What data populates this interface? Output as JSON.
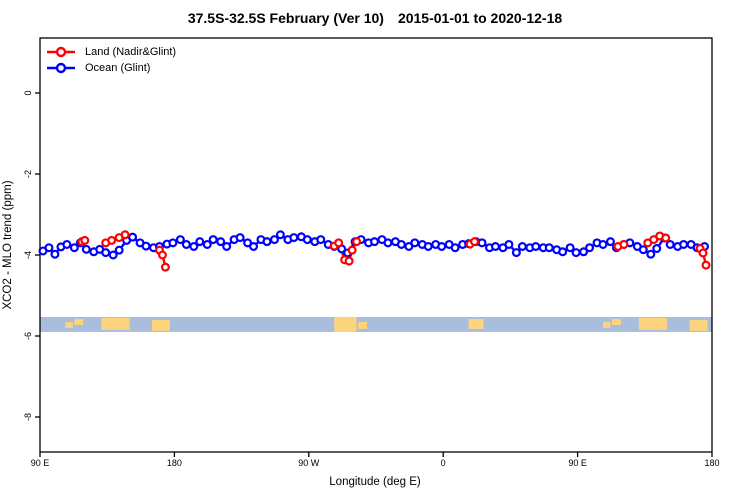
{
  "title": {
    "region": "37.5S-32.5S February (Ver 10)",
    "period": "2015-01-01 to 2020-12-18"
  },
  "legend": {
    "land_label": "Land (Nadir&Glint)",
    "ocean_label": "Ocean (Glint)"
  },
  "axes": {
    "x": {
      "label": "Longitude (deg E)",
      "ticks": [
        "90 E",
        "180",
        "90 W",
        "0",
        "90 E",
        "180"
      ],
      "tick_values": [
        90,
        180,
        270,
        360,
        450,
        540
      ],
      "range": [
        90,
        540
      ]
    },
    "y": {
      "label": "XCO2 - MLO trend (ppm)",
      "ticks": [
        "0",
        "-2",
        "-4",
        "-6",
        "-8"
      ],
      "tick_values": [
        0,
        -2,
        -4,
        -6,
        -8
      ],
      "range": [
        1.35,
        -8.85
      ]
    }
  },
  "colors": {
    "land": "#ff0000",
    "ocean": "#0000ff",
    "map_ocean": "#a9bedd",
    "map_land": "#fcd47e",
    "axis": "#000000",
    "marker_fill": "#ffffff"
  },
  "chart_data": {
    "type": "line",
    "title": "37.5S-32.5S February (Ver 10)  2015-01-01 to 2020-12-18",
    "xlabel": "Longitude (deg E)",
    "ylabel": "XCO2 - MLO trend (ppm)",
    "xlim": [
      90,
      540
    ],
    "ylim": [
      1.35,
      -8.85
    ],
    "grid": false,
    "legend_position": "top-left",
    "series": [
      {
        "name": "Ocean (Glint)",
        "color": "#0000ff",
        "points": [
          [
            92,
            -3.9
          ],
          [
            96,
            -3.82
          ],
          [
            100,
            -3.98
          ],
          [
            104,
            -3.8
          ],
          [
            108,
            -3.74
          ],
          [
            113,
            -3.82
          ],
          [
            117,
            -3.7
          ],
          [
            121,
            -3.86
          ],
          [
            126,
            -3.92
          ],
          [
            130,
            -3.86
          ],
          [
            134,
            -3.94
          ],
          [
            139,
            -4.0
          ],
          [
            143,
            -3.88
          ],
          [
            148,
            -3.64
          ],
          [
            152,
            -3.56
          ],
          [
            157,
            -3.7
          ],
          [
            161,
            -3.78
          ],
          [
            166,
            -3.82
          ],
          [
            170,
            -3.79
          ],
          [
            175,
            -3.73
          ],
          [
            179,
            -3.7
          ],
          [
            184,
            -3.62
          ],
          [
            188,
            -3.74
          ],
          [
            193,
            -3.79
          ],
          [
            197,
            -3.67
          ],
          [
            202,
            -3.74
          ],
          [
            206,
            -3.62
          ],
          [
            211,
            -3.67
          ],
          [
            215,
            -3.79
          ],
          [
            220,
            -3.62
          ],
          [
            224,
            -3.57
          ],
          [
            229,
            -3.7
          ],
          [
            233,
            -3.79
          ],
          [
            238,
            -3.62
          ],
          [
            242,
            -3.67
          ],
          [
            247,
            -3.62
          ],
          [
            251,
            -3.5
          ],
          [
            256,
            -3.62
          ],
          [
            260,
            -3.57
          ],
          [
            265,
            -3.55
          ],
          [
            269,
            -3.62
          ],
          [
            274,
            -3.67
          ],
          [
            278,
            -3.62
          ],
          [
            283,
            -3.74
          ],
          [
            287,
            -3.79
          ],
          [
            292,
            -3.85
          ],
          [
            296,
            -3.95
          ],
          [
            301,
            -3.67
          ],
          [
            305,
            -3.62
          ],
          [
            310,
            -3.7
          ],
          [
            314,
            -3.67
          ],
          [
            319,
            -3.62
          ],
          [
            323,
            -3.7
          ],
          [
            328,
            -3.67
          ],
          [
            332,
            -3.74
          ],
          [
            337,
            -3.79
          ],
          [
            341,
            -3.7
          ],
          [
            346,
            -3.74
          ],
          [
            350,
            -3.79
          ],
          [
            355,
            -3.74
          ],
          [
            359,
            -3.79
          ],
          [
            364,
            -3.74
          ],
          [
            368,
            -3.82
          ],
          [
            373,
            -3.74
          ],
          [
            377,
            -3.72
          ],
          [
            382,
            -3.67
          ],
          [
            386,
            -3.7
          ],
          [
            391,
            -3.82
          ],
          [
            395,
            -3.79
          ],
          [
            400,
            -3.82
          ],
          [
            404,
            -3.74
          ],
          [
            409,
            -3.94
          ],
          [
            413,
            -3.79
          ],
          [
            418,
            -3.82
          ],
          [
            422,
            -3.79
          ],
          [
            427,
            -3.82
          ],
          [
            431,
            -3.82
          ],
          [
            436,
            -3.87
          ],
          [
            440,
            -3.92
          ],
          [
            445,
            -3.82
          ],
          [
            449,
            -3.94
          ],
          [
            454,
            -3.92
          ],
          [
            458,
            -3.82
          ],
          [
            463,
            -3.7
          ],
          [
            467,
            -3.74
          ],
          [
            472,
            -3.67
          ],
          [
            476,
            -3.82
          ],
          [
            481,
            -3.74
          ],
          [
            485,
            -3.7
          ],
          [
            490,
            -3.79
          ],
          [
            494,
            -3.87
          ],
          [
            499,
            -3.98
          ],
          [
            503,
            -3.84
          ],
          [
            508,
            -3.58
          ],
          [
            512,
            -3.74
          ],
          [
            517,
            -3.79
          ],
          [
            521,
            -3.74
          ],
          [
            526,
            -3.74
          ],
          [
            530,
            -3.82
          ],
          [
            535,
            -3.79
          ]
        ]
      },
      {
        "name": "Land (Nadir&Glint)",
        "color": "#ff0000",
        "groups": [
          [
            [
              118,
              -3.67
            ],
            [
              120,
              -3.64
            ]
          ],
          [
            [
              134,
              -3.7
            ],
            [
              138,
              -3.64
            ],
            [
              143,
              -3.57
            ],
            [
              147,
              -3.5
            ]
          ],
          [
            [
              170,
              -3.88
            ],
            [
              172,
              -4.0
            ],
            [
              174,
              -4.3
            ]
          ],
          [
            [
              287,
              -3.78
            ],
            [
              290,
              -3.7
            ],
            [
              294,
              -4.12
            ],
            [
              297,
              -4.15
            ],
            [
              299,
              -3.88
            ],
            [
              302,
              -3.67
            ]
          ],
          [
            [
              378,
              -3.73
            ],
            [
              381,
              -3.67
            ]
          ],
          [
            [
              477,
              -3.79
            ],
            [
              481,
              -3.74
            ]
          ],
          [
            [
              497,
              -3.7
            ],
            [
              501,
              -3.62
            ],
            [
              505,
              -3.53
            ],
            [
              509,
              -3.58
            ]
          ],
          [
            [
              532,
              -3.84
            ],
            [
              534,
              -3.95
            ],
            [
              536,
              -4.25
            ]
          ]
        ]
      }
    ],
    "map_strip": {
      "description": "world map band for latitude 37.5S-32.5S",
      "ppm_top": -5.53,
      "ppm_bottom": -5.9,
      "lon_range": [
        90,
        540
      ],
      "land_patches": [
        {
          "from": 107,
          "to": 112,
          "top": 5,
          "bottom": 4
        },
        {
          "from": 113,
          "to": 119,
          "top": 2,
          "bottom": 7
        },
        {
          "from": 131,
          "to": 150,
          "top": 1,
          "bottom": 2
        },
        {
          "from": 165,
          "to": 177,
          "top": 3,
          "bottom": 1
        },
        {
          "from": 287,
          "to": 302,
          "top": 0,
          "bottom": 0
        },
        {
          "from": 303,
          "to": 309,
          "top": 5,
          "bottom": 3
        },
        {
          "from": 377,
          "to": 387,
          "top": 2,
          "bottom": 3
        },
        {
          "from": 467,
          "to": 472,
          "top": 5,
          "bottom": 4
        },
        {
          "from": 473,
          "to": 479,
          "top": 2,
          "bottom": 7
        },
        {
          "from": 491,
          "to": 510,
          "top": 1,
          "bottom": 2
        },
        {
          "from": 525,
          "to": 537,
          "top": 3,
          "bottom": 1
        }
      ]
    }
  }
}
